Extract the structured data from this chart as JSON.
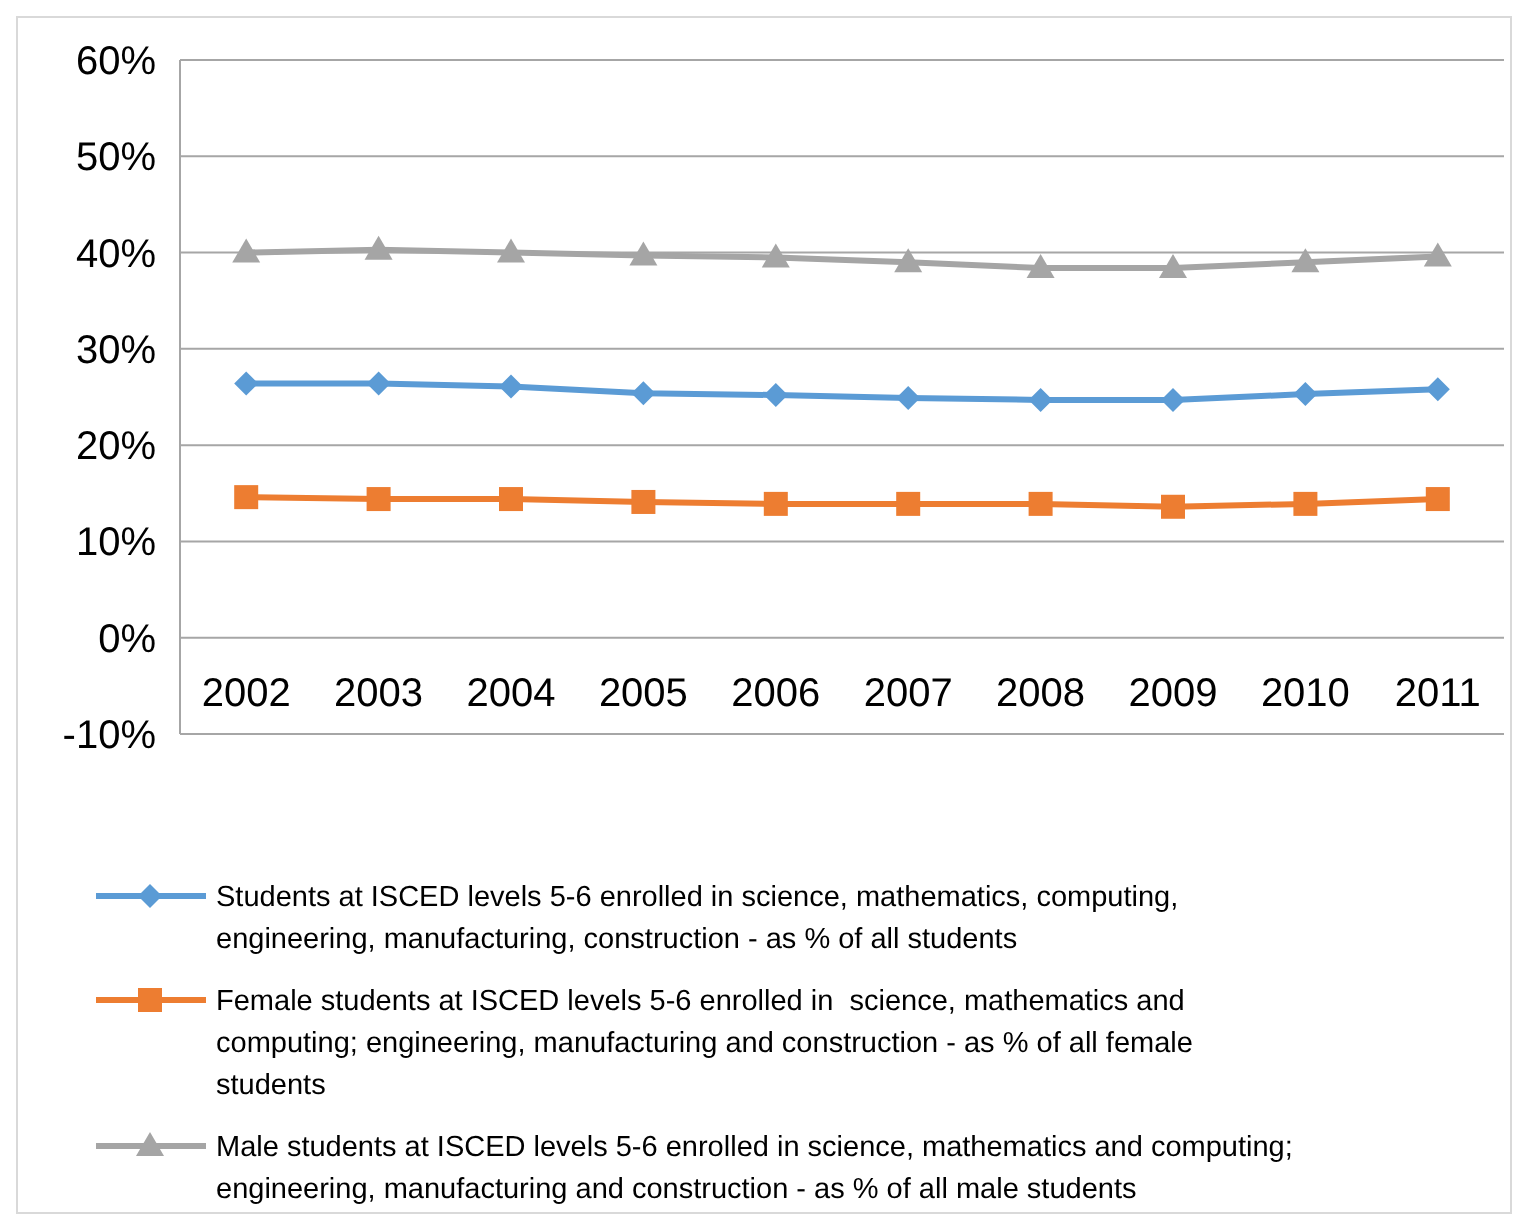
{
  "chart_data": {
    "type": "line",
    "categories": [
      "2002",
      "2003",
      "2004",
      "2005",
      "2006",
      "2007",
      "2008",
      "2009",
      "2010",
      "2011"
    ],
    "series": [
      {
        "name": "Students at ISCED levels 5-6 enrolled in science, mathematics, computing, engineering, manufacturing, construction - as % of all students",
        "color": "#5b9bd5",
        "marker": "diamond",
        "values": [
          26.4,
          26.4,
          26.1,
          25.4,
          25.2,
          24.9,
          24.7,
          24.7,
          25.3,
          25.8
        ]
      },
      {
        "name": "Female students at ISCED levels 5-6 enrolled in  science, mathematics and computing; engineering, manufacturing and construction - as % of all female students",
        "color": "#ed7d31",
        "marker": "square",
        "values": [
          14.6,
          14.4,
          14.4,
          14.1,
          13.9,
          13.9,
          13.9,
          13.6,
          13.9,
          14.4
        ]
      },
      {
        "name": "Male students at ISCED levels 5-6 enrolled in science, mathematics and computing; engineering, manufacturing and construction - as % of all male students",
        "color": "#a5a5a5",
        "marker": "triangle",
        "values": [
          40,
          40.3,
          40,
          39.7,
          39.5,
          39,
          38.4,
          38.4,
          39,
          39.6
        ]
      }
    ],
    "ylim": [
      -10,
      60
    ],
    "yticks": [
      {
        "value": -10,
        "label": "-10%"
      },
      {
        "value": 0,
        "label": "0%"
      },
      {
        "value": 10,
        "label": "10%"
      },
      {
        "value": 20,
        "label": "20%"
      },
      {
        "value": 30,
        "label": "30%"
      },
      {
        "value": 40,
        "label": "40%"
      },
      {
        "value": 50,
        "label": "50%"
      },
      {
        "value": 60,
        "label": "60%"
      }
    ],
    "grid": "y",
    "legend": "bottom",
    "line_style": "solid"
  }
}
